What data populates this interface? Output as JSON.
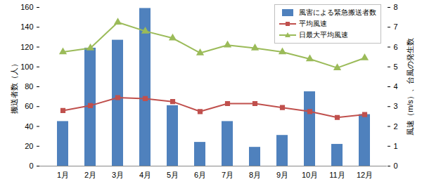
{
  "chart_data": {
    "type": "bar",
    "y_label": "搬送者数（人）",
    "y2_label": "風速（m/s）、台風の発生数",
    "categories": [
      "1月",
      "2月",
      "3月",
      "4月",
      "5月",
      "6月",
      "7月",
      "8月",
      "9月",
      "10月",
      "11月",
      "12月"
    ],
    "series": [
      {
        "name": "風害による緊急搬送者数",
        "type": "bar",
        "color": "#4f81bd",
        "values": [
          45,
          119,
          127,
          159,
          61,
          24,
          45,
          19,
          31,
          75,
          22,
          52
        ]
      },
      {
        "name": "平均風速",
        "type": "line",
        "axis": "y2",
        "color": "#c0504d",
        "marker": "square",
        "values": [
          2.8,
          3.05,
          3.45,
          3.4,
          3.25,
          2.75,
          3.15,
          3.15,
          2.95,
          2.75,
          2.45,
          2.6
        ]
      },
      {
        "name": "日最大平均風速",
        "type": "line",
        "axis": "y2",
        "color": "#9bbb59",
        "marker": "triangle",
        "values": [
          5.75,
          5.95,
          7.25,
          6.8,
          6.45,
          5.7,
          6.1,
          5.95,
          5.75,
          5.4,
          4.95,
          5.45
        ]
      }
    ],
    "ylim": [
      0,
      160
    ],
    "yticks": [
      0,
      20,
      40,
      60,
      80,
      100,
      120,
      140,
      160
    ],
    "y2lim": [
      0,
      8
    ],
    "y2ticks": [
      0,
      1,
      2,
      3,
      4,
      5,
      6,
      7,
      8
    ],
    "legend": "upper right",
    "grid": false
  }
}
